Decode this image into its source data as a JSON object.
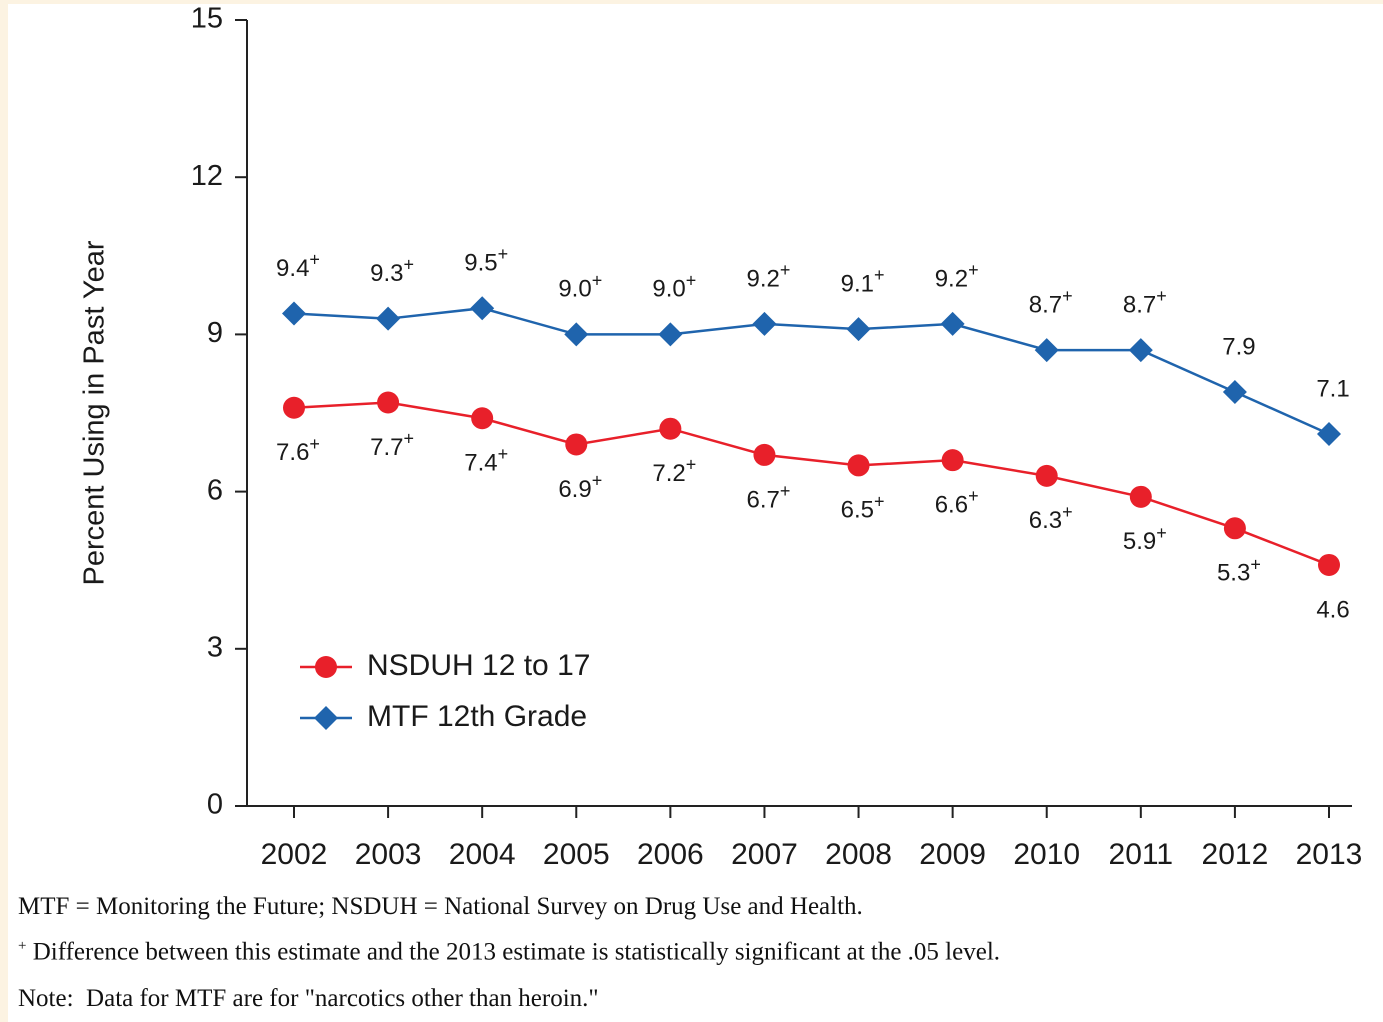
{
  "chart_data": {
    "type": "line",
    "y_label": "Percent Using in Past Year",
    "categories": [
      "2002",
      "2003",
      "2004",
      "2005",
      "2006",
      "2007",
      "2008",
      "2009",
      "2010",
      "2011",
      "2012",
      "2013"
    ],
    "series": [
      {
        "name": "NSDUH 12 to 17",
        "color": "#e8202a",
        "marker": "circle",
        "values": [
          7.6,
          7.7,
          7.4,
          6.9,
          7.2,
          6.7,
          6.5,
          6.6,
          6.3,
          5.9,
          5.3,
          4.6
        ],
        "value_labels": [
          "7.6+",
          "7.7+",
          "7.4+",
          "6.9+",
          "7.2+",
          "6.7+",
          "6.5+",
          "6.6+",
          "6.3+",
          "5.9+",
          "5.3+",
          "4.6"
        ],
        "label_position": "below"
      },
      {
        "name": "MTF 12th Grade",
        "color": "#1f64ad",
        "marker": "diamond",
        "values": [
          9.4,
          9.3,
          9.5,
          9.0,
          9.0,
          9.2,
          9.1,
          9.2,
          8.7,
          8.7,
          7.9,
          7.1
        ],
        "value_labels": [
          "9.4+",
          "9.3+",
          "9.5+",
          "9.0+",
          "9.0+",
          "9.2+",
          "9.1+",
          "9.2+",
          "8.7+",
          "8.7+",
          "7.9",
          "7.1"
        ],
        "label_position": "above"
      }
    ],
    "ylim": [
      0,
      15
    ],
    "yticks": [
      0,
      3,
      6,
      9,
      12,
      15
    ],
    "grid": false,
    "legend": "lower-left",
    "notes": [
      "MTF = Monitoring the Future; NSDUH = National Survey on Drug Use and Health.",
      "+ Difference between this estimate and the 2013 estimate is statistically significant at the .05 level.",
      "Note:  Data for MTF are for \"narcotics other than heroin.\""
    ]
  }
}
